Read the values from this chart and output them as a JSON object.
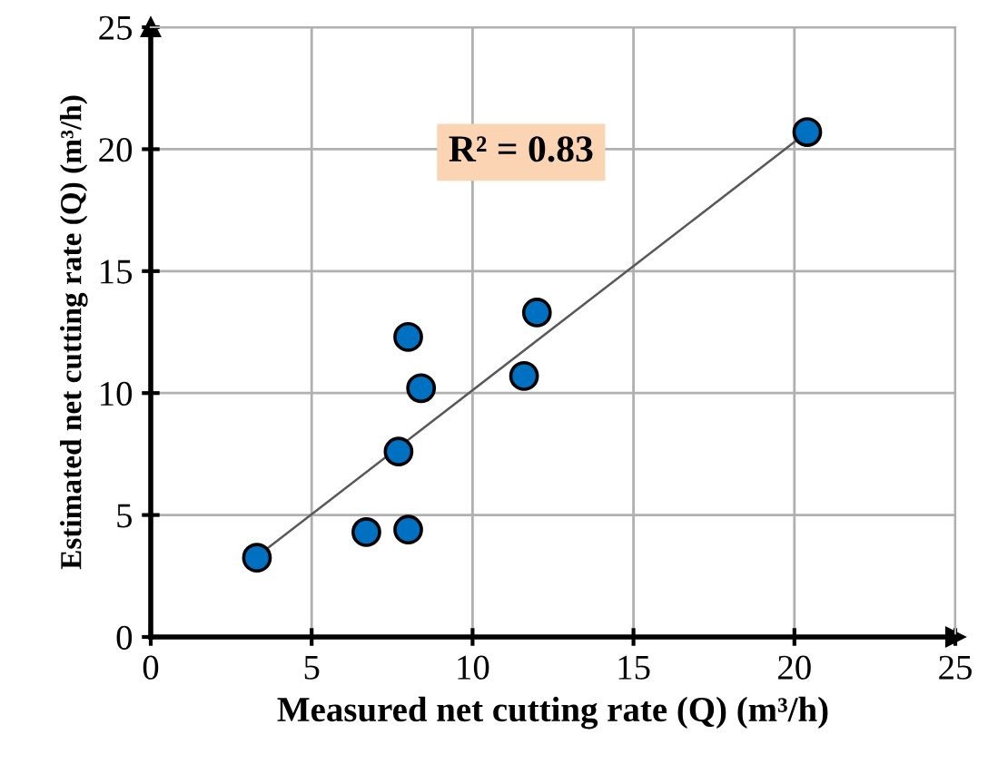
{
  "chart_data": {
    "type": "scatter",
    "xlabel": "Measured net cutting rate (Q) (m³/h)",
    "ylabel": "Estimated net cutting rate (Q) (m³/h)",
    "xlim": [
      0,
      25
    ],
    "ylim": [
      0,
      25
    ],
    "xticks": [
      0,
      5,
      10,
      15,
      20,
      25
    ],
    "yticks": [
      0,
      5,
      10,
      15,
      20,
      25
    ],
    "grid": true,
    "series": [
      {
        "color": "#0070c0",
        "marker": "circle",
        "x": [
          3.3,
          6.7,
          8.0,
          7.7,
          8.4,
          8.0,
          11.6,
          12.0,
          20.4
        ],
        "values": [
          3.25,
          4.3,
          4.4,
          7.6,
          10.2,
          12.3,
          10.7,
          13.3,
          20.7
        ]
      },
      {
        "type": "line",
        "color": "#595959",
        "marker": "none",
        "x": [
          3.3,
          20.4
        ],
        "values": [
          3.3,
          20.7
        ],
        "line_style": "solid"
      }
    ],
    "annotations": [
      "R² = 0.83"
    ]
  }
}
